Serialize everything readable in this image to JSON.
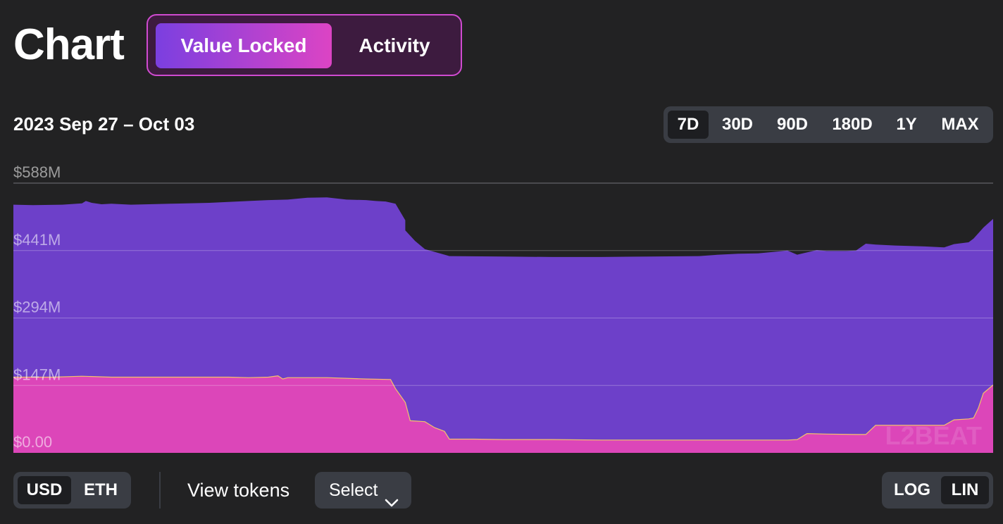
{
  "header": {
    "title": "Chart",
    "tabs": [
      {
        "label": "Value Locked",
        "active": true
      },
      {
        "label": "Activity",
        "active": false
      }
    ]
  },
  "date_range": "2023 Sep 27 – Oct 03",
  "range_buttons": [
    {
      "label": "7D",
      "active": true
    },
    {
      "label": "30D",
      "active": false
    },
    {
      "label": "90D",
      "active": false
    },
    {
      "label": "180D",
      "active": false
    },
    {
      "label": "1Y",
      "active": false
    },
    {
      "label": "MAX",
      "active": false
    }
  ],
  "currency": {
    "options": [
      {
        "label": "USD",
        "active": true
      },
      {
        "label": "ETH",
        "active": false
      }
    ]
  },
  "view_tokens": {
    "label": "View tokens",
    "select_label": "Select",
    "select_icon": "chevron-down-icon"
  },
  "scale": {
    "options": [
      {
        "label": "LOG",
        "active": false
      },
      {
        "label": "LIN",
        "active": true
      }
    ]
  },
  "watermark": "L2BEAT",
  "colors": {
    "background": "#222223",
    "total_area": "#6d40c9",
    "bottom_area": "#dc46b9",
    "bottom_line": "#f2c36a",
    "accent_border": "#d04bd0",
    "button_bg": "#3a3d44"
  },
  "chart_data": {
    "type": "area",
    "stacked": true,
    "xlim": [
      0,
      1
    ],
    "ylim": [
      0,
      588
    ],
    "y_ticks": [
      "$0.00",
      "$147M",
      "$294M",
      "$441M",
      "$588M"
    ],
    "y_tick_values": [
      0,
      147,
      294,
      441,
      588
    ],
    "unit": "$M",
    "grid": true,
    "series": [
      {
        "color": "#dc46b9",
        "points": [
          [
            0,
            165
          ],
          [
            0.02,
            165
          ],
          [
            0.04,
            165
          ],
          [
            0.07,
            167
          ],
          [
            0.1,
            165
          ],
          [
            0.15,
            165
          ],
          [
            0.2,
            165
          ],
          [
            0.22,
            165
          ],
          [
            0.24,
            164
          ],
          [
            0.26,
            165
          ],
          [
            0.27,
            168
          ],
          [
            0.275,
            161
          ],
          [
            0.28,
            164
          ],
          [
            0.32,
            164
          ],
          [
            0.36,
            161
          ],
          [
            0.385,
            160
          ],
          [
            0.39,
            140
          ],
          [
            0.4,
            110
          ],
          [
            0.405,
            70
          ],
          [
            0.42,
            68
          ],
          [
            0.43,
            55
          ],
          [
            0.44,
            47
          ],
          [
            0.445,
            30
          ],
          [
            0.47,
            30
          ],
          [
            0.5,
            29
          ],
          [
            0.55,
            29
          ],
          [
            0.6,
            28
          ],
          [
            0.7,
            28
          ],
          [
            0.75,
            28
          ],
          [
            0.79,
            28
          ],
          [
            0.8,
            29
          ],
          [
            0.81,
            42
          ],
          [
            0.83,
            41
          ],
          [
            0.86,
            40
          ],
          [
            0.87,
            40
          ],
          [
            0.88,
            60
          ],
          [
            0.9,
            60
          ],
          [
            0.95,
            60
          ],
          [
            0.96,
            72
          ],
          [
            0.975,
            74
          ],
          [
            0.98,
            76
          ],
          [
            0.985,
            98
          ],
          [
            0.99,
            130
          ],
          [
            1,
            148
          ]
        ]
      },
      {
        "color": "#6d40c9",
        "points": [
          [
            0,
            541
          ],
          [
            0.02,
            540
          ],
          [
            0.05,
            541
          ],
          [
            0.07,
            544
          ],
          [
            0.074,
            549
          ],
          [
            0.08,
            545
          ],
          [
            0.09,
            542
          ],
          [
            0.1,
            543
          ],
          [
            0.12,
            541
          ],
          [
            0.16,
            543
          ],
          [
            0.2,
            545
          ],
          [
            0.24,
            549
          ],
          [
            0.26,
            551
          ],
          [
            0.28,
            552
          ],
          [
            0.3,
            556
          ],
          [
            0.32,
            557
          ],
          [
            0.34,
            552
          ],
          [
            0.36,
            551
          ],
          [
            0.37,
            549
          ],
          [
            0.38,
            548
          ],
          [
            0.39,
            543
          ],
          [
            0.4,
            507
          ],
          [
            0.4,
            485
          ],
          [
            0.41,
            462
          ],
          [
            0.42,
            444
          ],
          [
            0.445,
            429
          ],
          [
            0.5,
            428
          ],
          [
            0.55,
            427
          ],
          [
            0.6,
            427
          ],
          [
            0.65,
            428
          ],
          [
            0.7,
            429
          ],
          [
            0.72,
            432
          ],
          [
            0.74,
            434
          ],
          [
            0.76,
            435
          ],
          [
            0.78,
            439
          ],
          [
            0.79,
            441
          ],
          [
            0.8,
            432
          ],
          [
            0.81,
            437
          ],
          [
            0.82,
            442
          ],
          [
            0.83,
            440
          ],
          [
            0.85,
            440
          ],
          [
            0.86,
            441
          ],
          [
            0.87,
            456
          ],
          [
            0.88,
            454
          ],
          [
            0.9,
            452
          ],
          [
            0.93,
            450
          ],
          [
            0.95,
            448
          ],
          [
            0.96,
            455
          ],
          [
            0.975,
            459
          ],
          [
            0.98,
            467
          ],
          [
            0.99,
            491
          ],
          [
            1,
            510
          ]
        ]
      }
    ]
  }
}
